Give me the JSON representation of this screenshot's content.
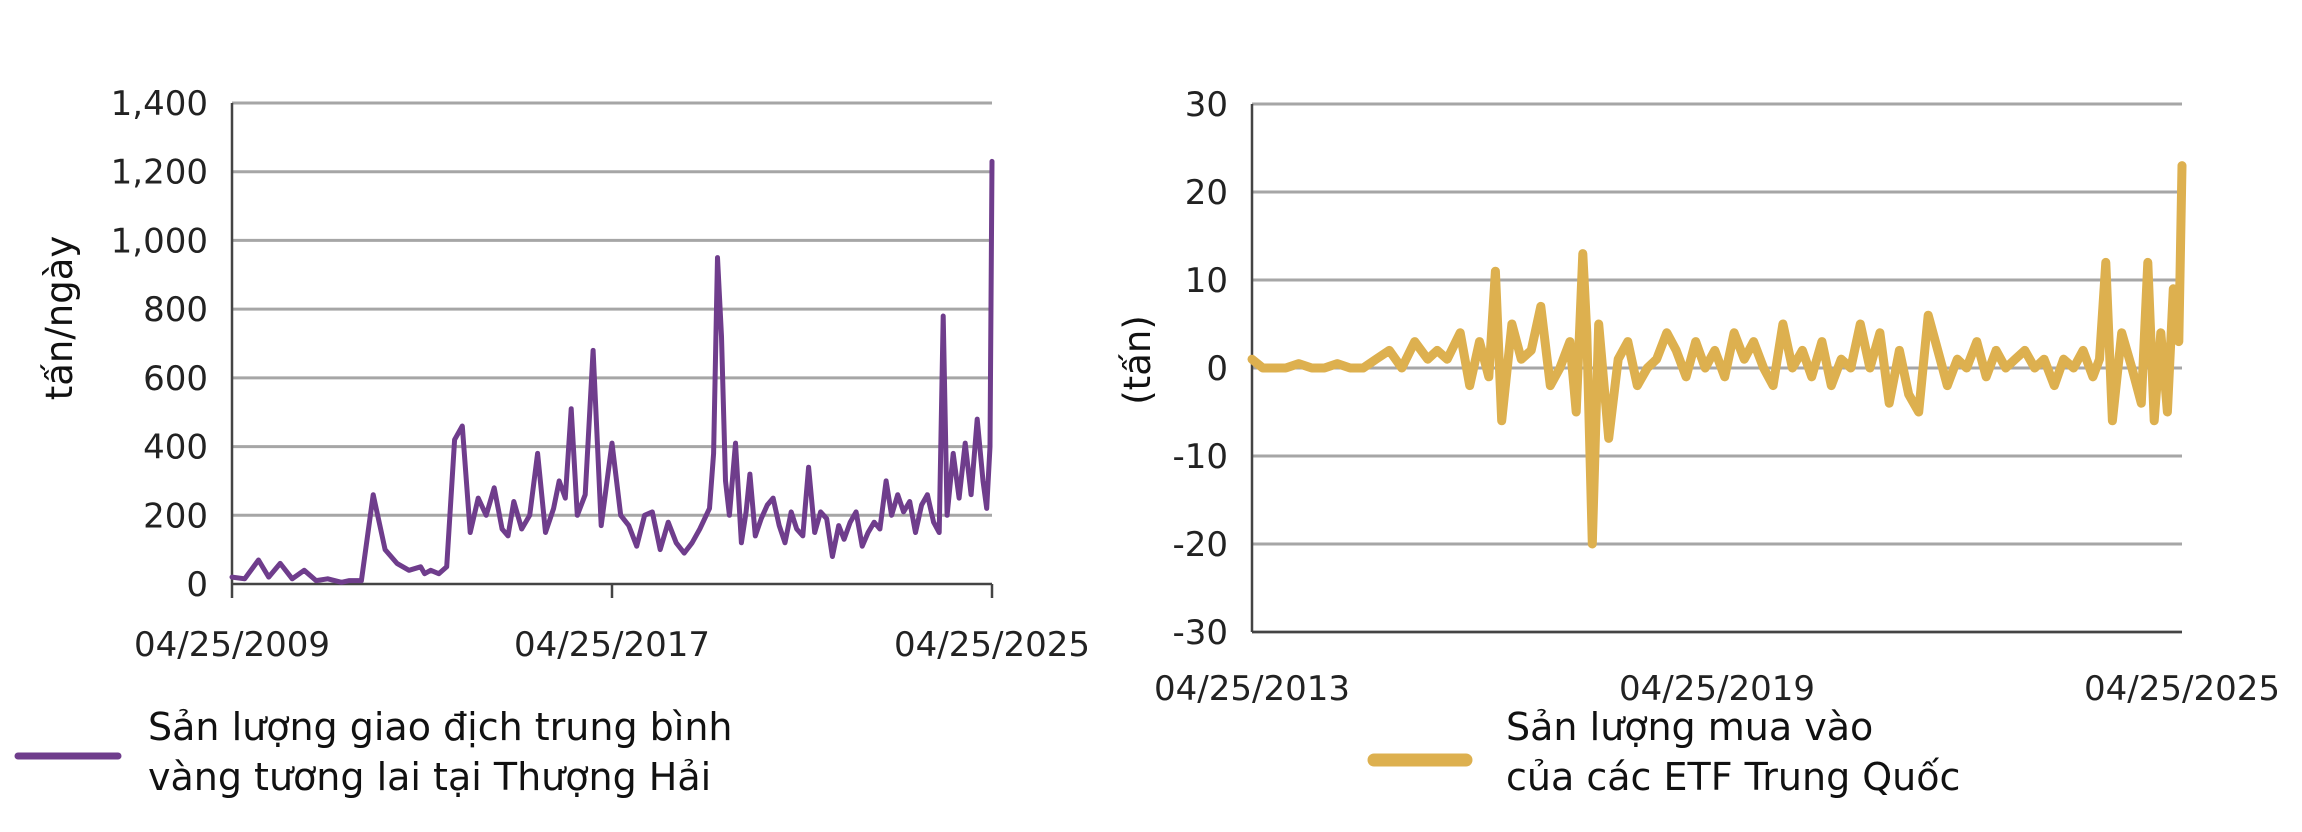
{
  "chart_data": [
    {
      "type": "line",
      "ylabel": "tấn/ngày",
      "ylim": [
        0,
        1400
      ],
      "yticks": [
        "0",
        "200",
        "400",
        "600",
        "800",
        "1,000",
        "1,200",
        "1,400"
      ],
      "xlim": [
        "2009-04-25",
        "2025-04-25"
      ],
      "xticks": [
        "04/25/2009",
        "04/25/2017",
        "04/25/2025"
      ],
      "grid": true,
      "legend": "bottom-left",
      "series": [
        {
          "name": "Sản lượng giao địch trung bình vàng tương lai tại Thượng Hải",
          "color": "#6f3d8c",
          "x": [
            "2009-04-25",
            "2009-08-01",
            "2009-11-15",
            "2010-02-01",
            "2010-05-01",
            "2010-08-01",
            "2010-11-01",
            "2011-02-01",
            "2011-05-01",
            "2011-08-15",
            "2011-10-15",
            "2012-01-15",
            "2012-04-15",
            "2012-07-15",
            "2012-10-15",
            "2013-01-15",
            "2013-04-15",
            "2013-05-15",
            "2013-07-01",
            "2013-09-01",
            "2013-11-01",
            "2014-01-01",
            "2014-03-01",
            "2014-05-01",
            "2014-07-01",
            "2014-09-01",
            "2014-11-01",
            "2015-01-01",
            "2015-02-15",
            "2015-04-01",
            "2015-06-01",
            "2015-08-01",
            "2015-10-01",
            "2015-12-01",
            "2016-02-01",
            "2016-03-15",
            "2016-05-01",
            "2016-06-15",
            "2016-08-01",
            "2016-10-01",
            "2016-12-01",
            "2017-02-01",
            "2017-04-25",
            "2017-07-01",
            "2017-09-01",
            "2017-11-01",
            "2018-01-01",
            "2018-03-01",
            "2018-05-01",
            "2018-07-01",
            "2018-09-01",
            "2018-11-01",
            "2019-01-01",
            "2019-03-01",
            "2019-05-15",
            "2019-06-15",
            "2019-07-15",
            "2019-08-15",
            "2019-09-15",
            "2019-10-15",
            "2019-12-01",
            "2020-01-15",
            "2020-02-20",
            "2020-03-20",
            "2020-05-01",
            "2020-06-15",
            "2020-08-01",
            "2020-09-15",
            "2020-11-01",
            "2020-12-15",
            "2021-02-01",
            "2021-03-15",
            "2021-05-01",
            "2021-06-15",
            "2021-08-01",
            "2021-09-15",
            "2021-11-01",
            "2021-12-15",
            "2022-02-01",
            "2022-03-15",
            "2022-05-01",
            "2022-06-15",
            "2022-08-01",
            "2022-09-15",
            "2022-11-01",
            "2022-12-15",
            "2023-02-01",
            "2023-03-15",
            "2023-05-01",
            "2023-06-15",
            "2023-08-01",
            "2023-09-15",
            "2023-11-01",
            "2023-12-15",
            "2024-02-01",
            "2024-03-15",
            "2024-04-15",
            "2024-05-15",
            "2024-07-01",
            "2024-08-15",
            "2024-10-01",
            "2024-11-15",
            "2025-01-01",
            "2025-02-15",
            "2025-03-15",
            "2025-04-10",
            "2025-04-25"
          ],
          "values": [
            20,
            15,
            70,
            20,
            60,
            15,
            40,
            10,
            15,
            5,
            10,
            10,
            260,
            100,
            60,
            40,
            50,
            30,
            40,
            30,
            50,
            420,
            460,
            150,
            250,
            200,
            280,
            160,
            140,
            240,
            160,
            200,
            380,
            150,
            220,
            300,
            250,
            510,
            200,
            260,
            680,
            170,
            410,
            200,
            170,
            110,
            200,
            210,
            100,
            180,
            120,
            90,
            120,
            160,
            220,
            380,
            950,
            720,
            300,
            200,
            410,
            120,
            210,
            320,
            140,
            190,
            230,
            250,
            170,
            120,
            210,
            160,
            140,
            340,
            150,
            210,
            190,
            80,
            170,
            130,
            180,
            210,
            110,
            150,
            180,
            160,
            300,
            200,
            260,
            210,
            240,
            150,
            230,
            260,
            180,
            150,
            780,
            200,
            380,
            250,
            410,
            260,
            480,
            300,
            220,
            400,
            1230
          ]
        }
      ]
    },
    {
      "type": "line",
      "ylabel": "(tấn)",
      "ylim": [
        -30,
        30
      ],
      "yticks": [
        "-30",
        "-20",
        "-10",
        "0",
        "10",
        "20",
        "30"
      ],
      "xlim": [
        "2013-04-25",
        "2025-04-25"
      ],
      "xticks": [
        "04/25/2013",
        "04/25/2019",
        "04/25/2025"
      ],
      "grid": true,
      "legend": "bottom-center",
      "series": [
        {
          "name": "Sản lượng mua vào của các ETF Trung Quốc",
          "color": "#ddb04f",
          "x": [
            "2013-04-25",
            "2013-06-15",
            "2013-08-01",
            "2013-10-01",
            "2013-12-01",
            "2014-02-01",
            "2014-04-01",
            "2014-06-01",
            "2014-08-01",
            "2014-10-01",
            "2014-12-01",
            "2015-02-01",
            "2015-04-01",
            "2015-06-01",
            "2015-08-01",
            "2015-09-15",
            "2015-11-01",
            "2016-01-01",
            "2016-02-15",
            "2016-04-01",
            "2016-05-15",
            "2016-06-15",
            "2016-07-15",
            "2016-09-01",
            "2016-10-15",
            "2016-12-01",
            "2017-01-15",
            "2017-03-01",
            "2017-04-15",
            "2017-06-01",
            "2017-07-01",
            "2017-08-01",
            "2017-08-20",
            "2017-09-15",
            "2017-10-15",
            "2017-12-01",
            "2018-01-15",
            "2018-03-01",
            "2018-04-15",
            "2018-06-01",
            "2018-07-15",
            "2018-09-01",
            "2018-10-15",
            "2018-12-01",
            "2019-01-15",
            "2019-03-01",
            "2019-04-15",
            "2019-06-01",
            "2019-07-15",
            "2019-09-01",
            "2019-10-15",
            "2019-12-01",
            "2020-01-15",
            "2020-03-01",
            "2020-04-15",
            "2020-06-01",
            "2020-07-15",
            "2020-09-01",
            "2020-10-15",
            "2020-12-01",
            "2021-01-15",
            "2021-03-01",
            "2021-04-15",
            "2021-06-01",
            "2021-07-15",
            "2021-09-01",
            "2021-10-15",
            "2021-12-01",
            "2022-01-15",
            "2022-03-01",
            "2022-04-15",
            "2022-06-01",
            "2022-07-15",
            "2022-09-01",
            "2022-10-15",
            "2022-12-01",
            "2023-01-15",
            "2023-03-01",
            "2023-04-15",
            "2023-06-01",
            "2023-07-15",
            "2023-09-01",
            "2023-10-15",
            "2023-12-01",
            "2024-01-15",
            "2024-03-01",
            "2024-04-01",
            "2024-05-01",
            "2024-06-01",
            "2024-07-15",
            "2024-09-01",
            "2024-10-15",
            "2024-11-15",
            "2024-12-15",
            "2025-01-15",
            "2025-02-15",
            "2025-03-15",
            "2025-04-10",
            "2025-04-25"
          ],
          "values": [
            1,
            0,
            0,
            0,
            0.5,
            0,
            0,
            0.5,
            0,
            0,
            1,
            2,
            0,
            3,
            1,
            2,
            1,
            4,
            -2,
            3,
            -1,
            11,
            -6,
            5,
            1,
            2,
            7,
            -2,
            0,
            3,
            -5,
            13,
            4,
            -20,
            5,
            -8,
            1,
            3,
            -2,
            0,
            1,
            4,
            2,
            -1,
            3,
            0,
            2,
            -1,
            4,
            1,
            3,
            0,
            -2,
            5,
            0,
            2,
            -1,
            3,
            -2,
            1,
            0,
            5,
            0,
            4,
            -4,
            2,
            -3,
            -5,
            6,
            2,
            -2,
            1,
            0,
            3,
            -1,
            2,
            0,
            1,
            2,
            0,
            1,
            -2,
            1,
            0,
            2,
            -1,
            1,
            12,
            -6,
            4,
            0,
            -4,
            12,
            -6,
            4,
            -5,
            9,
            3,
            23
          ]
        }
      ]
    }
  ]
}
